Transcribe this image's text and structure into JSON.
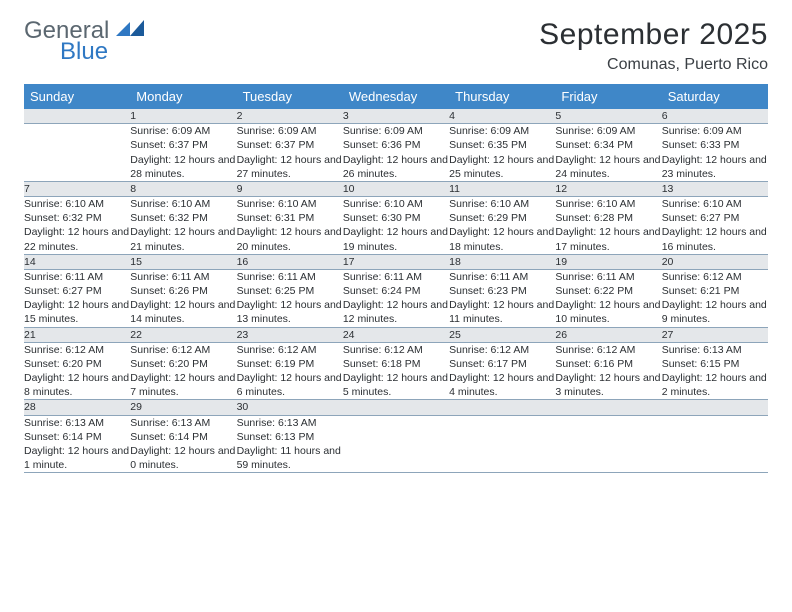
{
  "brand": {
    "line1": "General",
    "line2": "Blue"
  },
  "title": "September 2025",
  "subtitle": "Comunas, Puerto Rico",
  "colors": {
    "header_bg": "#3f87c8",
    "header_fg": "#ffffff",
    "daynum_bg": "#e4e7ea",
    "row_divider": "#8da5ba",
    "title_color": "#2b2f33",
    "brand_gray": "#5b6770",
    "brand_blue": "#2f78c3"
  },
  "weekdays": [
    "Sunday",
    "Monday",
    "Tuesday",
    "Wednesday",
    "Thursday",
    "Friday",
    "Saturday"
  ],
  "weeks": [
    [
      null,
      {
        "n": "1",
        "sunrise": "6:09 AM",
        "sunset": "6:37 PM",
        "daylight": "12 hours and 28 minutes."
      },
      {
        "n": "2",
        "sunrise": "6:09 AM",
        "sunset": "6:37 PM",
        "daylight": "12 hours and 27 minutes."
      },
      {
        "n": "3",
        "sunrise": "6:09 AM",
        "sunset": "6:36 PM",
        "daylight": "12 hours and 26 minutes."
      },
      {
        "n": "4",
        "sunrise": "6:09 AM",
        "sunset": "6:35 PM",
        "daylight": "12 hours and 25 minutes."
      },
      {
        "n": "5",
        "sunrise": "6:09 AM",
        "sunset": "6:34 PM",
        "daylight": "12 hours and 24 minutes."
      },
      {
        "n": "6",
        "sunrise": "6:09 AM",
        "sunset": "6:33 PM",
        "daylight": "12 hours and 23 minutes."
      }
    ],
    [
      {
        "n": "7",
        "sunrise": "6:10 AM",
        "sunset": "6:32 PM",
        "daylight": "12 hours and 22 minutes."
      },
      {
        "n": "8",
        "sunrise": "6:10 AM",
        "sunset": "6:32 PM",
        "daylight": "12 hours and 21 minutes."
      },
      {
        "n": "9",
        "sunrise": "6:10 AM",
        "sunset": "6:31 PM",
        "daylight": "12 hours and 20 minutes."
      },
      {
        "n": "10",
        "sunrise": "6:10 AM",
        "sunset": "6:30 PM",
        "daylight": "12 hours and 19 minutes."
      },
      {
        "n": "11",
        "sunrise": "6:10 AM",
        "sunset": "6:29 PM",
        "daylight": "12 hours and 18 minutes."
      },
      {
        "n": "12",
        "sunrise": "6:10 AM",
        "sunset": "6:28 PM",
        "daylight": "12 hours and 17 minutes."
      },
      {
        "n": "13",
        "sunrise": "6:10 AM",
        "sunset": "6:27 PM",
        "daylight": "12 hours and 16 minutes."
      }
    ],
    [
      {
        "n": "14",
        "sunrise": "6:11 AM",
        "sunset": "6:27 PM",
        "daylight": "12 hours and 15 minutes."
      },
      {
        "n": "15",
        "sunrise": "6:11 AM",
        "sunset": "6:26 PM",
        "daylight": "12 hours and 14 minutes."
      },
      {
        "n": "16",
        "sunrise": "6:11 AM",
        "sunset": "6:25 PM",
        "daylight": "12 hours and 13 minutes."
      },
      {
        "n": "17",
        "sunrise": "6:11 AM",
        "sunset": "6:24 PM",
        "daylight": "12 hours and 12 minutes."
      },
      {
        "n": "18",
        "sunrise": "6:11 AM",
        "sunset": "6:23 PM",
        "daylight": "12 hours and 11 minutes."
      },
      {
        "n": "19",
        "sunrise": "6:11 AM",
        "sunset": "6:22 PM",
        "daylight": "12 hours and 10 minutes."
      },
      {
        "n": "20",
        "sunrise": "6:12 AM",
        "sunset": "6:21 PM",
        "daylight": "12 hours and 9 minutes."
      }
    ],
    [
      {
        "n": "21",
        "sunrise": "6:12 AM",
        "sunset": "6:20 PM",
        "daylight": "12 hours and 8 minutes."
      },
      {
        "n": "22",
        "sunrise": "6:12 AM",
        "sunset": "6:20 PM",
        "daylight": "12 hours and 7 minutes."
      },
      {
        "n": "23",
        "sunrise": "6:12 AM",
        "sunset": "6:19 PM",
        "daylight": "12 hours and 6 minutes."
      },
      {
        "n": "24",
        "sunrise": "6:12 AM",
        "sunset": "6:18 PM",
        "daylight": "12 hours and 5 minutes."
      },
      {
        "n": "25",
        "sunrise": "6:12 AM",
        "sunset": "6:17 PM",
        "daylight": "12 hours and 4 minutes."
      },
      {
        "n": "26",
        "sunrise": "6:12 AM",
        "sunset": "6:16 PM",
        "daylight": "12 hours and 3 minutes."
      },
      {
        "n": "27",
        "sunrise": "6:13 AM",
        "sunset": "6:15 PM",
        "daylight": "12 hours and 2 minutes."
      }
    ],
    [
      {
        "n": "28",
        "sunrise": "6:13 AM",
        "sunset": "6:14 PM",
        "daylight": "12 hours and 1 minute."
      },
      {
        "n": "29",
        "sunrise": "6:13 AM",
        "sunset": "6:14 PM",
        "daylight": "12 hours and 0 minutes."
      },
      {
        "n": "30",
        "sunrise": "6:13 AM",
        "sunset": "6:13 PM",
        "daylight": "11 hours and 59 minutes."
      },
      null,
      null,
      null,
      null
    ]
  ]
}
